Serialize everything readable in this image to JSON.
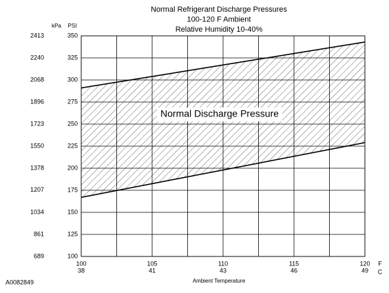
{
  "chart_data": {
    "type": "band",
    "title": [
      "Normal Refrigerant Discharge Pressures",
      "100-120 F Ambient",
      "Relative Humidity 10-40%"
    ],
    "y_label": "PSI",
    "y2_label": "kPa",
    "x_label": "Ambient Temperature",
    "x_unit": "F",
    "x2_unit": "C",
    "annotation": "Normal Discharge Pressure",
    "figure_code": "A0082849",
    "x": [
      100,
      120
    ],
    "upper": [
      291,
      343
    ],
    "lower": [
      167,
      229
    ],
    "xlim": [
      100,
      120
    ],
    "xticks": [
      100,
      105,
      110,
      115,
      120
    ],
    "xticks_celsius": [
      38,
      41,
      43,
      46,
      49
    ],
    "xminorticks": [
      102.5,
      107.5,
      112.5,
      117.5
    ],
    "ylim": [
      100,
      350
    ],
    "yticks": [
      100,
      125,
      150,
      175,
      200,
      225,
      250,
      275,
      300,
      325,
      350
    ],
    "y2lim": [
      689,
      2413
    ],
    "y2ticks": [
      689,
      861,
      1034,
      1207,
      1378,
      1550,
      1723,
      1896,
      2068,
      2240,
      2413
    ],
    "grid": true,
    "hatch": true,
    "color": "#000000"
  }
}
